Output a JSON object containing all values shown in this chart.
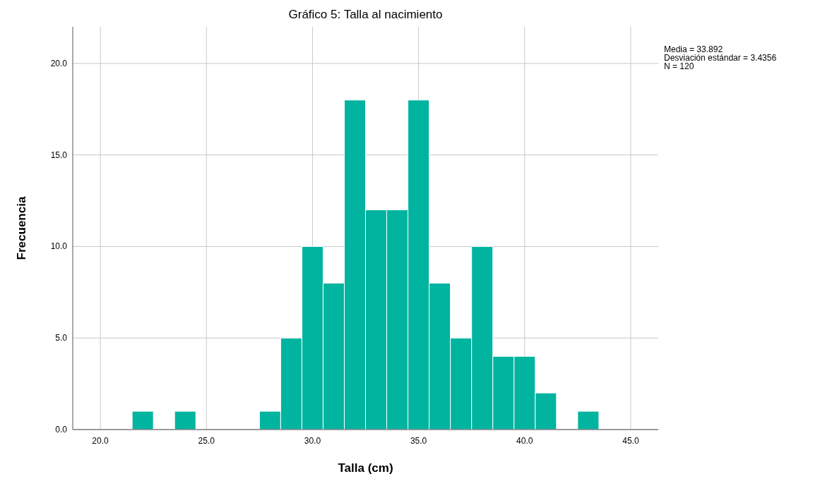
{
  "chart_data": {
    "type": "histogram",
    "title": "Gráfico 5: Talla al nacimiento",
    "xlabel": "Talla (cm)",
    "ylabel": "Frecuencia",
    "bins": [
      21.5,
      22.5,
      23.5,
      24.5,
      25.5,
      26.5,
      27.5,
      28.5,
      29.5,
      30.5,
      31.5,
      32.5,
      33.5,
      34.5,
      35.5,
      36.5,
      37.5,
      38.5,
      39.5,
      40.5,
      41.5,
      42.5,
      43.5
    ],
    "values": [
      1,
      0,
      1,
      0,
      0,
      0,
      1,
      5,
      10,
      8,
      18,
      12,
      12,
      18,
      8,
      5,
      10,
      4,
      4,
      2,
      0,
      1
    ],
    "color": "#00b4a0",
    "xlim": [
      18.7,
      46.3
    ],
    "xticks": [
      {
        "value": 20,
        "label": "20.0"
      },
      {
        "value": 25,
        "label": "25.0"
      },
      {
        "value": 30,
        "label": "30.0"
      },
      {
        "value": 35,
        "label": "35.0"
      },
      {
        "value": 40,
        "label": "40.0"
      },
      {
        "value": 45,
        "label": "45.0"
      }
    ],
    "ylim": [
      0,
      22
    ],
    "yticks": [
      {
        "value": 0,
        "label": "0.0"
      },
      {
        "value": 5,
        "label": "5.0"
      },
      {
        "value": 10,
        "label": "10.0"
      },
      {
        "value": 15,
        "label": "15.0"
      },
      {
        "value": 20,
        "label": "20.0"
      }
    ],
    "grid": true,
    "annotations": [
      "Media = 33.892",
      "Desviación estándar = 3.4356",
      "N = 120"
    ]
  }
}
